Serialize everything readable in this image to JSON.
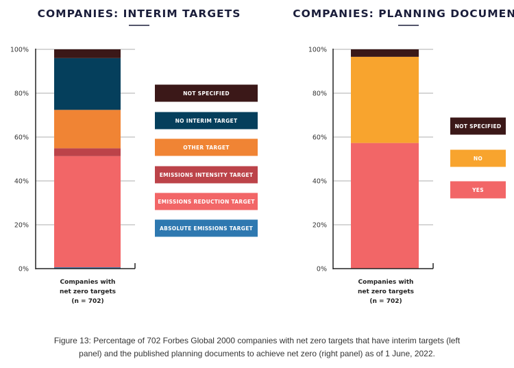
{
  "chart_data": [
    {
      "type": "bar",
      "stacked": true,
      "title": "COMPANIES: INTERIM TARGETS",
      "categories": [
        "Companies with",
        "net zero targets",
        "(n = 702)"
      ],
      "ylim": [
        0,
        100
      ],
      "yticks": [
        "0%",
        "20%",
        "40%",
        "60%",
        "80%",
        "100%"
      ],
      "grid": true,
      "legend_position": "right",
      "series": [
        {
          "name": "ABSOLUTE EMISSIONS TARGET",
          "value": 0.6,
          "color": "#2e78b0"
        },
        {
          "name": "EMISSIONS REDUCTION TARGET",
          "value": 50.7,
          "color": "#f26667"
        },
        {
          "name": "EMISSIONS INTENSITY TARGET",
          "value": 3.6,
          "color": "#bc4349"
        },
        {
          "name": "OTHER TARGET",
          "value": 17.5,
          "color": "#f08434"
        },
        {
          "name": "NO INTERIM TARGET",
          "value": 23.6,
          "color": "#053f5c"
        },
        {
          "name": "NOT SPECIFIED",
          "value": 4.0,
          "color": "#3b1818"
        }
      ]
    },
    {
      "type": "bar",
      "stacked": true,
      "title": "COMPANIES: PLANNING DOCUMENT",
      "categories": [
        "Companies with",
        "net zero targets",
        "(n = 702)"
      ],
      "ylim": [
        0,
        100
      ],
      "yticks": [
        "0%",
        "20%",
        "40%",
        "60%",
        "80%",
        "100%"
      ],
      "grid": true,
      "legend_position": "right",
      "series": [
        {
          "name": "YES",
          "value": 57.3,
          "color": "#f26667"
        },
        {
          "name": "NO",
          "value": 39.3,
          "color": "#f8a42e"
        },
        {
          "name": "NOT SPECIFIED",
          "value": 3.4,
          "color": "#3b1818"
        }
      ]
    }
  ],
  "caption": {
    "line1": "Figure 13:  Percentage of 702 Forbes Global 2000 companies with net zero targets that have interim targets (left",
    "line2": "panel) and the published planning documents to achieve net zero (right panel) as of 1 June, 2022."
  }
}
